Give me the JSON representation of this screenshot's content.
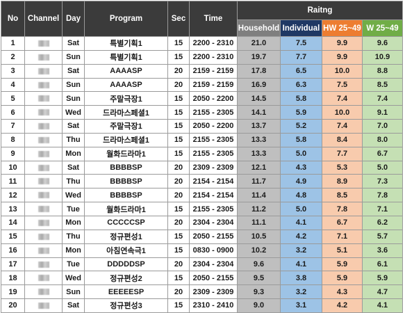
{
  "header": {
    "no": "No",
    "channel": "Channel",
    "day": "Day",
    "program": "Program",
    "sec": "Sec",
    "time": "Time",
    "rating_group": "Raitng",
    "household": "Household",
    "individual": "Individual",
    "hw": "HW 25~49",
    "w": "W 25~49"
  },
  "colors": {
    "header_bg": "#3b3b3b",
    "household": "#bfbfbf",
    "individual": "#9dc3e6",
    "hw": "#f8cbad",
    "w": "#c5e0b4",
    "household_header": "#7f7f7f",
    "individual_header": "#1f3864",
    "hw_header": "#ed7d31",
    "w_header": "#70ad47"
  },
  "rows": [
    {
      "no": "1",
      "day": "Sat",
      "program": "특별기획1",
      "sec": "15",
      "time": "2200 - 2310",
      "household": "21.0",
      "individual": "7.5",
      "hw": "9.9",
      "w": "9.6"
    },
    {
      "no": "2",
      "day": "Sun",
      "program": "특별기획1",
      "sec": "15",
      "time": "2200 - 2310",
      "household": "19.7",
      "individual": "7.7",
      "hw": "9.9",
      "w": "10.9"
    },
    {
      "no": "3",
      "day": "Sat",
      "program": "AAAASP",
      "sec": "20",
      "time": "2159 - 2159",
      "household": "17.8",
      "individual": "6.5",
      "hw": "10.0",
      "w": "8.8"
    },
    {
      "no": "4",
      "day": "Sun",
      "program": "AAAASP",
      "sec": "20",
      "time": "2159 - 2159",
      "household": "16.9",
      "individual": "6.3",
      "hw": "7.5",
      "w": "8.5"
    },
    {
      "no": "5",
      "day": "Sun",
      "program": "주말극장1",
      "sec": "15",
      "time": "2050 - 2200",
      "household": "14.5",
      "individual": "5.8",
      "hw": "7.4",
      "w": "7.4"
    },
    {
      "no": "6",
      "day": "Wed",
      "program": "드라마스페셜1",
      "sec": "15",
      "time": "2155 - 2305",
      "household": "14.1",
      "individual": "5.9",
      "hw": "10.0",
      "w": "9.1"
    },
    {
      "no": "7",
      "day": "Sat",
      "program": "주말극장1",
      "sec": "15",
      "time": "2050 - 2200",
      "household": "13.7",
      "individual": "5.2",
      "hw": "7.4",
      "w": "7.0"
    },
    {
      "no": "8",
      "day": "Thu",
      "program": "드라마스페셜1",
      "sec": "15",
      "time": "2155 - 2305",
      "household": "13.3",
      "individual": "5.8",
      "hw": "8.4",
      "w": "8.0"
    },
    {
      "no": "9",
      "day": "Mon",
      "program": "월화드라마1",
      "sec": "15",
      "time": "2155 - 2305",
      "household": "13.3",
      "individual": "5.0",
      "hw": "7.7",
      "w": "6.7"
    },
    {
      "no": "10",
      "day": "Sat",
      "program": "BBBBSP",
      "sec": "20",
      "time": "2309 - 2309",
      "household": "12.1",
      "individual": "4.3",
      "hw": "5.3",
      "w": "5.0"
    },
    {
      "no": "11",
      "day": "Thu",
      "program": "BBBBSP",
      "sec": "20",
      "time": "2154 - 2154",
      "household": "11.7",
      "individual": "4.9",
      "hw": "8.9",
      "w": "7.3"
    },
    {
      "no": "12",
      "day": "Wed",
      "program": "BBBBSP",
      "sec": "20",
      "time": "2154 - 2154",
      "household": "11.4",
      "individual": "4.8",
      "hw": "8.5",
      "w": "7.8"
    },
    {
      "no": "13",
      "day": "Tue",
      "program": "월화드라마1",
      "sec": "15",
      "time": "2155 - 2305",
      "household": "11.2",
      "individual": "5.0",
      "hw": "7.8",
      "w": "7.1"
    },
    {
      "no": "14",
      "day": "Mon",
      "program": "CCCCCSP",
      "sec": "20",
      "time": "2304 - 2304",
      "household": "11.1",
      "individual": "4.1",
      "hw": "6.7",
      "w": "6.2"
    },
    {
      "no": "15",
      "day": "Thu",
      "program": "정규편성1",
      "sec": "15",
      "time": "2050 - 2155",
      "household": "10.5",
      "individual": "4.2",
      "hw": "7.1",
      "w": "5.7"
    },
    {
      "no": "16",
      "day": "Mon",
      "program": "아침연속극1",
      "sec": "15",
      "time": "0830 - 0900",
      "household": "10.2",
      "individual": "3.2",
      "hw": "5.1",
      "w": "3.6"
    },
    {
      "no": "17",
      "day": "Tue",
      "program": "DDDDDSP",
      "sec": "20",
      "time": "2304 - 2304",
      "household": "9.6",
      "individual": "4.1",
      "hw": "5.9",
      "w": "6.1"
    },
    {
      "no": "18",
      "day": "Wed",
      "program": "정규편성2",
      "sec": "15",
      "time": "2050 - 2155",
      "household": "9.5",
      "individual": "3.8",
      "hw": "5.9",
      "w": "5.9"
    },
    {
      "no": "19",
      "day": "Sun",
      "program": "EEEEESP",
      "sec": "20",
      "time": "2309 - 2309",
      "household": "9.3",
      "individual": "3.2",
      "hw": "4.3",
      "w": "4.7"
    },
    {
      "no": "20",
      "day": "Sat",
      "program": "정규편성3",
      "sec": "15",
      "time": "2310 - 2410",
      "household": "9.0",
      "individual": "3.1",
      "hw": "4.2",
      "w": "4.1"
    }
  ]
}
